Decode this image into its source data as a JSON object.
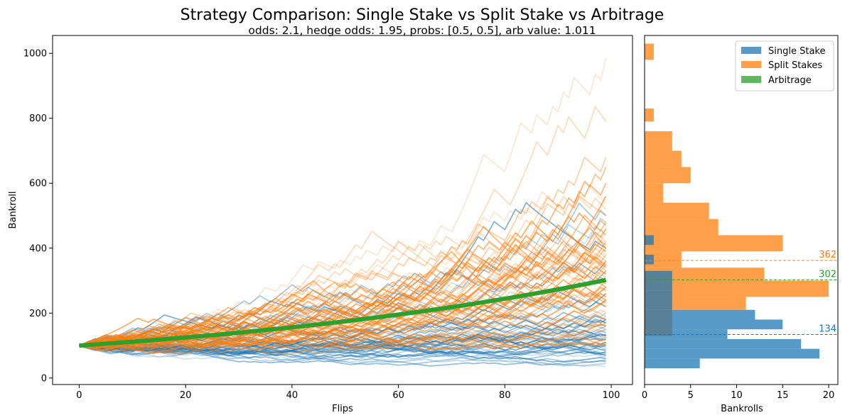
{
  "title": "Strategy Comparison: Single Stake vs Split Stake vs Arbitrage",
  "subtitle": "odds: 2.1, hedge odds: 1.95, probs: [0.5, 0.5], arb value: 1.011",
  "colors": {
    "single": "#1f77b4",
    "split": "#ff7f0e",
    "arb": "#2ca02c"
  },
  "chart_data": [
    {
      "type": "line",
      "xlabel": "Flips",
      "ylabel": "Bankroll",
      "xlim": [
        -5,
        104
      ],
      "ylim": [
        -20,
        1055
      ],
      "x_ticks": [
        0,
        20,
        40,
        60,
        80,
        100
      ],
      "y_ticks": [
        0,
        200,
        400,
        600,
        800,
        1000
      ],
      "series": [
        {
          "key": "single",
          "count": 50,
          "start": 100,
          "final_values": [
            35,
            45,
            50,
            55,
            60,
            65,
            70,
            75,
            80,
            85,
            90,
            95,
            100,
            105,
            110,
            115,
            120,
            125,
            130,
            135,
            140,
            150,
            160,
            170,
            180,
            190,
            200,
            220,
            240,
            260,
            280,
            300,
            330,
            360,
            400,
            440,
            480,
            500,
            70,
            80,
            90,
            100,
            110,
            120,
            130,
            140,
            150,
            160,
            170,
            180
          ]
        },
        {
          "key": "split",
          "count": 60,
          "start": 100,
          "final_values": [
            985,
            790,
            680,
            650,
            600,
            560,
            540,
            520,
            500,
            480,
            470,
            460,
            450,
            440,
            420,
            410,
            400,
            390,
            380,
            370,
            360,
            350,
            345,
            340,
            330,
            320,
            310,
            300,
            290,
            280,
            270,
            260,
            250,
            240,
            230,
            220,
            210,
            200,
            190,
            180,
            170,
            160,
            150,
            140,
            130,
            120,
            110,
            100,
            300,
            350,
            400,
            250,
            280,
            320,
            360,
            420,
            380,
            330,
            270,
            240
          ]
        },
        {
          "key": "arb",
          "start": 100,
          "end": 302,
          "x": [
            0,
            99
          ]
        }
      ]
    },
    {
      "type": "bar",
      "orientation": "horizontal",
      "xlabel": "Bankrolls",
      "xlim": [
        0,
        21
      ],
      "x_ticks": [
        0,
        5,
        10,
        15,
        20
      ],
      "legend": {
        "placement": "top-right",
        "entries": [
          "Single Stake",
          "Split Stakes",
          "Arbitrage"
        ]
      },
      "series": [
        {
          "key": "single",
          "name": "Single Stake",
          "bins": [
            [
              30,
              60,
              6
            ],
            [
              60,
              90,
              19
            ],
            [
              90,
              120,
              17
            ],
            [
              120,
              150,
              9
            ],
            [
              150,
              180,
              15
            ],
            [
              180,
              210,
              12
            ],
            [
              210,
              240,
              3
            ],
            [
              240,
              270,
              3
            ],
            [
              270,
              300,
              3
            ],
            [
              300,
              330,
              3
            ],
            [
              350,
              380,
              1
            ],
            [
              410,
              440,
              1
            ]
          ]
        },
        {
          "key": "split",
          "name": "Split Stakes",
          "bins": [
            [
              130,
              210,
              3
            ],
            [
              210,
              250,
              11
            ],
            [
              250,
              300,
              20
            ],
            [
              300,
              340,
              13
            ],
            [
              340,
              390,
              4
            ],
            [
              390,
              440,
              15
            ],
            [
              440,
              490,
              8
            ],
            [
              490,
              540,
              7
            ],
            [
              540,
              600,
              2
            ],
            [
              600,
              650,
              5
            ],
            [
              650,
              700,
              4
            ],
            [
              700,
              760,
              3
            ],
            [
              790,
              830,
              1
            ],
            [
              980,
              1030,
              1
            ]
          ]
        },
        {
          "key": "arb",
          "name": "Arbitrage",
          "bins": []
        }
      ],
      "reference_lines": [
        {
          "key": "single",
          "value": 134,
          "label": "134"
        },
        {
          "key": "arb",
          "value": 302,
          "label": "302"
        },
        {
          "key": "split",
          "value": 362,
          "label": "362"
        }
      ]
    }
  ]
}
